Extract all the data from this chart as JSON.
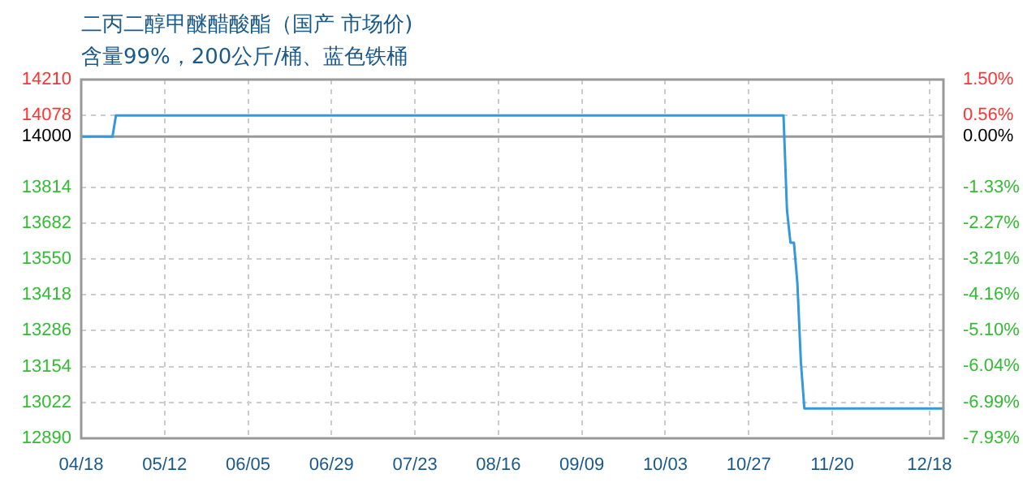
{
  "chart_data": {
    "type": "line",
    "title": "二丙二醇甲醚醋酸酯（国产 市场价)",
    "subtitle": "含量99%，200公斤/桶、蓝色铁桶",
    "x": [
      "--04-18",
      "--04-27",
      "--04-28",
      "--11-06",
      "--11-07",
      "--11-08",
      "--11-09",
      "--11-10",
      "--11-11",
      "--11-12",
      "--12-22"
    ],
    "series": [
      {
        "color": "#3399dd",
        "values": [
          14000,
          14000,
          14078,
          14078,
          13730,
          13610,
          13610,
          13460,
          13170,
          13000,
          13000
        ]
      }
    ],
    "xlim": [
      "--04-18",
      "--12-22"
    ],
    "xticks": [
      {
        "value": "--04-18",
        "label": "04/18"
      },
      {
        "value": "--05-12",
        "label": "05/12"
      },
      {
        "value": "--06-05",
        "label": "06/05"
      },
      {
        "value": "--06-29",
        "label": "06/29"
      },
      {
        "value": "--07-23",
        "label": "07/23"
      },
      {
        "value": "--08-16",
        "label": "08/16"
      },
      {
        "value": "--09-09",
        "label": "09/09"
      },
      {
        "value": "--10-03",
        "label": "10/03"
      },
      {
        "value": "--10-27",
        "label": "10/27"
      },
      {
        "value": "--11-20",
        "label": "11/20"
      },
      {
        "value": "--12-18",
        "label": "12/18"
      }
    ],
    "ylim": [
      12890,
      14210
    ],
    "yticks": [
      14210,
      14078,
      14000,
      13814,
      13682,
      13550,
      13418,
      13286,
      13154,
      13022,
      12890
    ],
    "y2lim": [
      -7.93,
      1.5
    ],
    "y2ticks": [
      {
        "value": 1.5,
        "label": "1.50%"
      },
      {
        "value": 0.56,
        "label": "0.56%"
      },
      {
        "value": 0,
        "label": "0.00%"
      },
      {
        "value": -1.33,
        "label": "-1.33%"
      },
      {
        "value": -2.27,
        "label": "-2.27%"
      },
      {
        "value": -3.21,
        "label": "-3.21%"
      },
      {
        "value": -4.16,
        "label": "-4.16%"
      },
      {
        "value": -5.1,
        "label": "-5.10%"
      },
      {
        "value": -6.04,
        "label": "-6.04%"
      },
      {
        "value": -6.99,
        "label": "-6.99%"
      },
      {
        "value": -7.93,
        "label": "-7.93%"
      }
    ],
    "ref_lines": [
      {
        "axis": "y",
        "value": 14000,
        "color": "#999999"
      }
    ],
    "grid": true,
    "legend": false,
    "marker": "none",
    "line_style": "solid"
  }
}
